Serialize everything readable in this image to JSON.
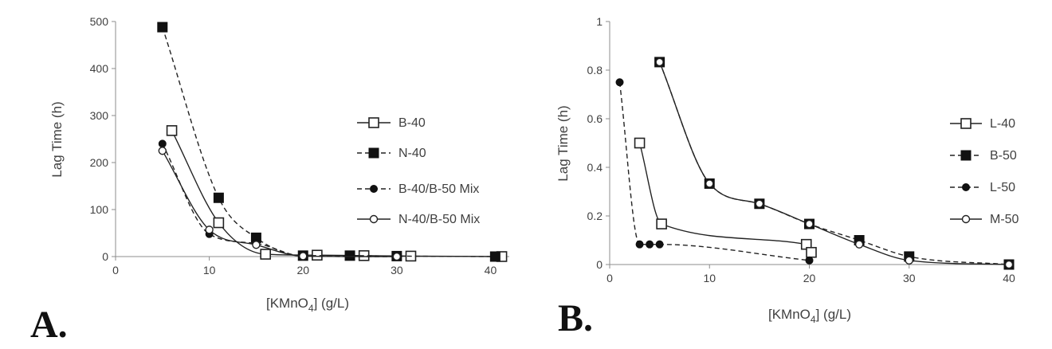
{
  "chart_data": [
    {
      "type": "scatter",
      "panel_label": "A.",
      "xlabel_main": "[KMnO",
      "xlabel_sub": "4",
      "xlabel_tail": "] (g/L)",
      "ylabel": "Lag Time (h)",
      "xlim": [
        0,
        42
      ],
      "ylim": [
        0,
        500
      ],
      "xticks": [
        "0",
        "10",
        "20",
        "30",
        "40"
      ],
      "xtick_values": [
        0,
        10,
        20,
        30,
        40
      ],
      "yticks": [
        "0",
        "100",
        "200",
        "300",
        "400",
        "500"
      ],
      "ytick_values": [
        0,
        100,
        200,
        300,
        400,
        500
      ],
      "legend_position": "right",
      "series": [
        {
          "name": "B-40",
          "marker": "open-square",
          "line": "solid",
          "x": [
            6,
            11,
            16,
            21.5,
            26.5,
            31.5,
            41.2
          ],
          "y": [
            268,
            72,
            5,
            3,
            2,
            1,
            0
          ]
        },
        {
          "name": "N-40",
          "marker": "filled-square",
          "line": "dashed",
          "x": [
            5,
            11,
            15,
            20,
            25,
            30,
            40.5
          ],
          "y": [
            488,
            125,
            40,
            2,
            2,
            1,
            0
          ]
        },
        {
          "name": "B-40/B-50 Mix",
          "marker": "filled-circle",
          "line": "dashed",
          "x": [
            5,
            10,
            15,
            20,
            30
          ],
          "y": [
            240,
            48,
            28,
            1,
            0
          ]
        },
        {
          "name": "N-40/B-50 Mix",
          "marker": "open-circle",
          "line": "solid",
          "x": [
            5,
            10,
            15,
            20,
            30
          ],
          "y": [
            225,
            57,
            25,
            1,
            0
          ]
        }
      ]
    },
    {
      "type": "scatter",
      "panel_label": "B.",
      "xlabel_main": "[KMnO",
      "xlabel_sub": "4",
      "xlabel_tail": "] (g/L)",
      "ylabel": "Lag Time (h)",
      "xlim": [
        0,
        40
      ],
      "ylim": [
        0,
        1
      ],
      "xticks": [
        "0",
        "10",
        "20",
        "30",
        "40"
      ],
      "xtick_values": [
        0,
        10,
        20,
        30,
        40
      ],
      "yticks": [
        "0",
        "0.2",
        "0.4",
        "0.6",
        "0.8",
        "1"
      ],
      "ytick_values": [
        0,
        0.2,
        0.4,
        0.6,
        0.8,
        1
      ],
      "legend_position": "right",
      "series": [
        {
          "name": "L-40",
          "marker": "open-square",
          "line": "solid",
          "x": [
            3,
            5.2,
            19.7,
            20.2
          ],
          "y": [
            0.5,
            0.167,
            0.083,
            0.05
          ]
        },
        {
          "name": "B-50",
          "marker": "filled-square",
          "line": "dashed",
          "x": [
            5,
            10,
            15,
            20,
            25,
            30,
            40
          ],
          "y": [
            0.833,
            0.333,
            0.25,
            0.167,
            0.1,
            0.033,
            0
          ]
        },
        {
          "name": "L-50",
          "marker": "filled-circle",
          "line": "dashed",
          "x": [
            1,
            3,
            4,
            5,
            20
          ],
          "y": [
            0.75,
            0.083,
            0.083,
            0.083,
            0.017
          ]
        },
        {
          "name": "M-50",
          "marker": "open-circle",
          "line": "solid",
          "x": [
            5,
            10,
            15,
            20,
            25,
            30,
            40
          ],
          "y": [
            0.833,
            0.333,
            0.25,
            0.167,
            0.083,
            0.017,
            0
          ]
        }
      ]
    }
  ]
}
